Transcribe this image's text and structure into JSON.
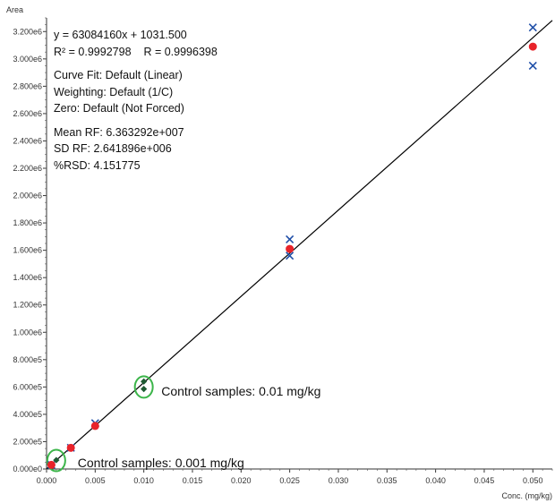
{
  "chart_data": {
    "type": "scatter",
    "xlabel": "Conc. (mg/kg)",
    "ylabel": "Area",
    "xlim": [
      0,
      0.052
    ],
    "ylim": [
      0,
      3300000
    ],
    "x_ticks": [
      0.0,
      0.005,
      0.01,
      0.015,
      0.02,
      0.025,
      0.03,
      0.035,
      0.04,
      0.045,
      0.05
    ],
    "x_tick_labels": [
      "0.000",
      "0.005",
      "0.010",
      "0.015",
      "0.020",
      "0.025",
      "0.030",
      "0.035",
      "0.040",
      "0.045",
      "0.050"
    ],
    "y_ticks": [
      0,
      200000,
      400000,
      600000,
      800000,
      1000000,
      1200000,
      1400000,
      1600000,
      1800000,
      2000000,
      2200000,
      2400000,
      2600000,
      2800000,
      3000000,
      3200000
    ],
    "y_tick_labels": [
      "0.000e0",
      "2.000e5",
      "4.000e5",
      "6.000e5",
      "8.000e5",
      "1.000e6",
      "1.200e6",
      "1.400e6",
      "1.600e6",
      "1.800e6",
      "2.000e6",
      "2.200e6",
      "2.400e6",
      "2.600e6",
      "2.800e6",
      "3.000e6",
      "3.200e6"
    ],
    "fit_line": {
      "slope": 63084160,
      "intercept": 1031.5,
      "x_range": [
        0,
        0.052
      ],
      "color": "#000000"
    },
    "series": [
      {
        "marker": "x",
        "color": "#1f4fa8",
        "points": [
          [
            0.0005,
            30000
          ],
          [
            0.0025,
            155000
          ],
          [
            0.005,
            335000
          ],
          [
            0.025,
            1680000
          ],
          [
            0.025,
            1560000
          ],
          [
            0.05,
            3230000
          ],
          [
            0.05,
            2950000
          ]
        ]
      },
      {
        "marker": "circle",
        "color": "#e8232a",
        "points": [
          [
            0.0005,
            30000
          ],
          [
            0.0025,
            155000
          ],
          [
            0.005,
            315000
          ],
          [
            0.025,
            1610000
          ],
          [
            0.05,
            3090000
          ]
        ]
      },
      {
        "marker": "diamond",
        "color": "#1e5b32",
        "points": [
          [
            0.001,
            65000
          ],
          [
            0.01,
            640000
          ],
          [
            0.01,
            585000
          ]
        ]
      }
    ],
    "highlights": [
      {
        "x": 0.001,
        "y": 62000,
        "color": "#3cb54a"
      },
      {
        "x": 0.01,
        "y": 600000,
        "color": "#3cb54a"
      }
    ],
    "annotations": [
      {
        "text": "Control samples: 0.01 mg/kg",
        "x": 0.0118,
        "y": 560000
      },
      {
        "text": "Control samples: 0.001 mg/kg",
        "x": 0.0032,
        "y": 40000
      }
    ]
  },
  "stats": {
    "equation": "y = 63084160x + 1031.500",
    "r2": "R² = 0.9992798",
    "r": "R = 0.9996398",
    "curve_fit": "Curve Fit: Default (Linear)",
    "weighting": "Weighting: Default (1/C)",
    "zero": "Zero: Default (Not Forced)",
    "mean_rf": "Mean RF: 6.363292e+007",
    "sd_rf": "SD RF: 2.641896e+006",
    "rsd": "%RSD: 4.151775"
  }
}
